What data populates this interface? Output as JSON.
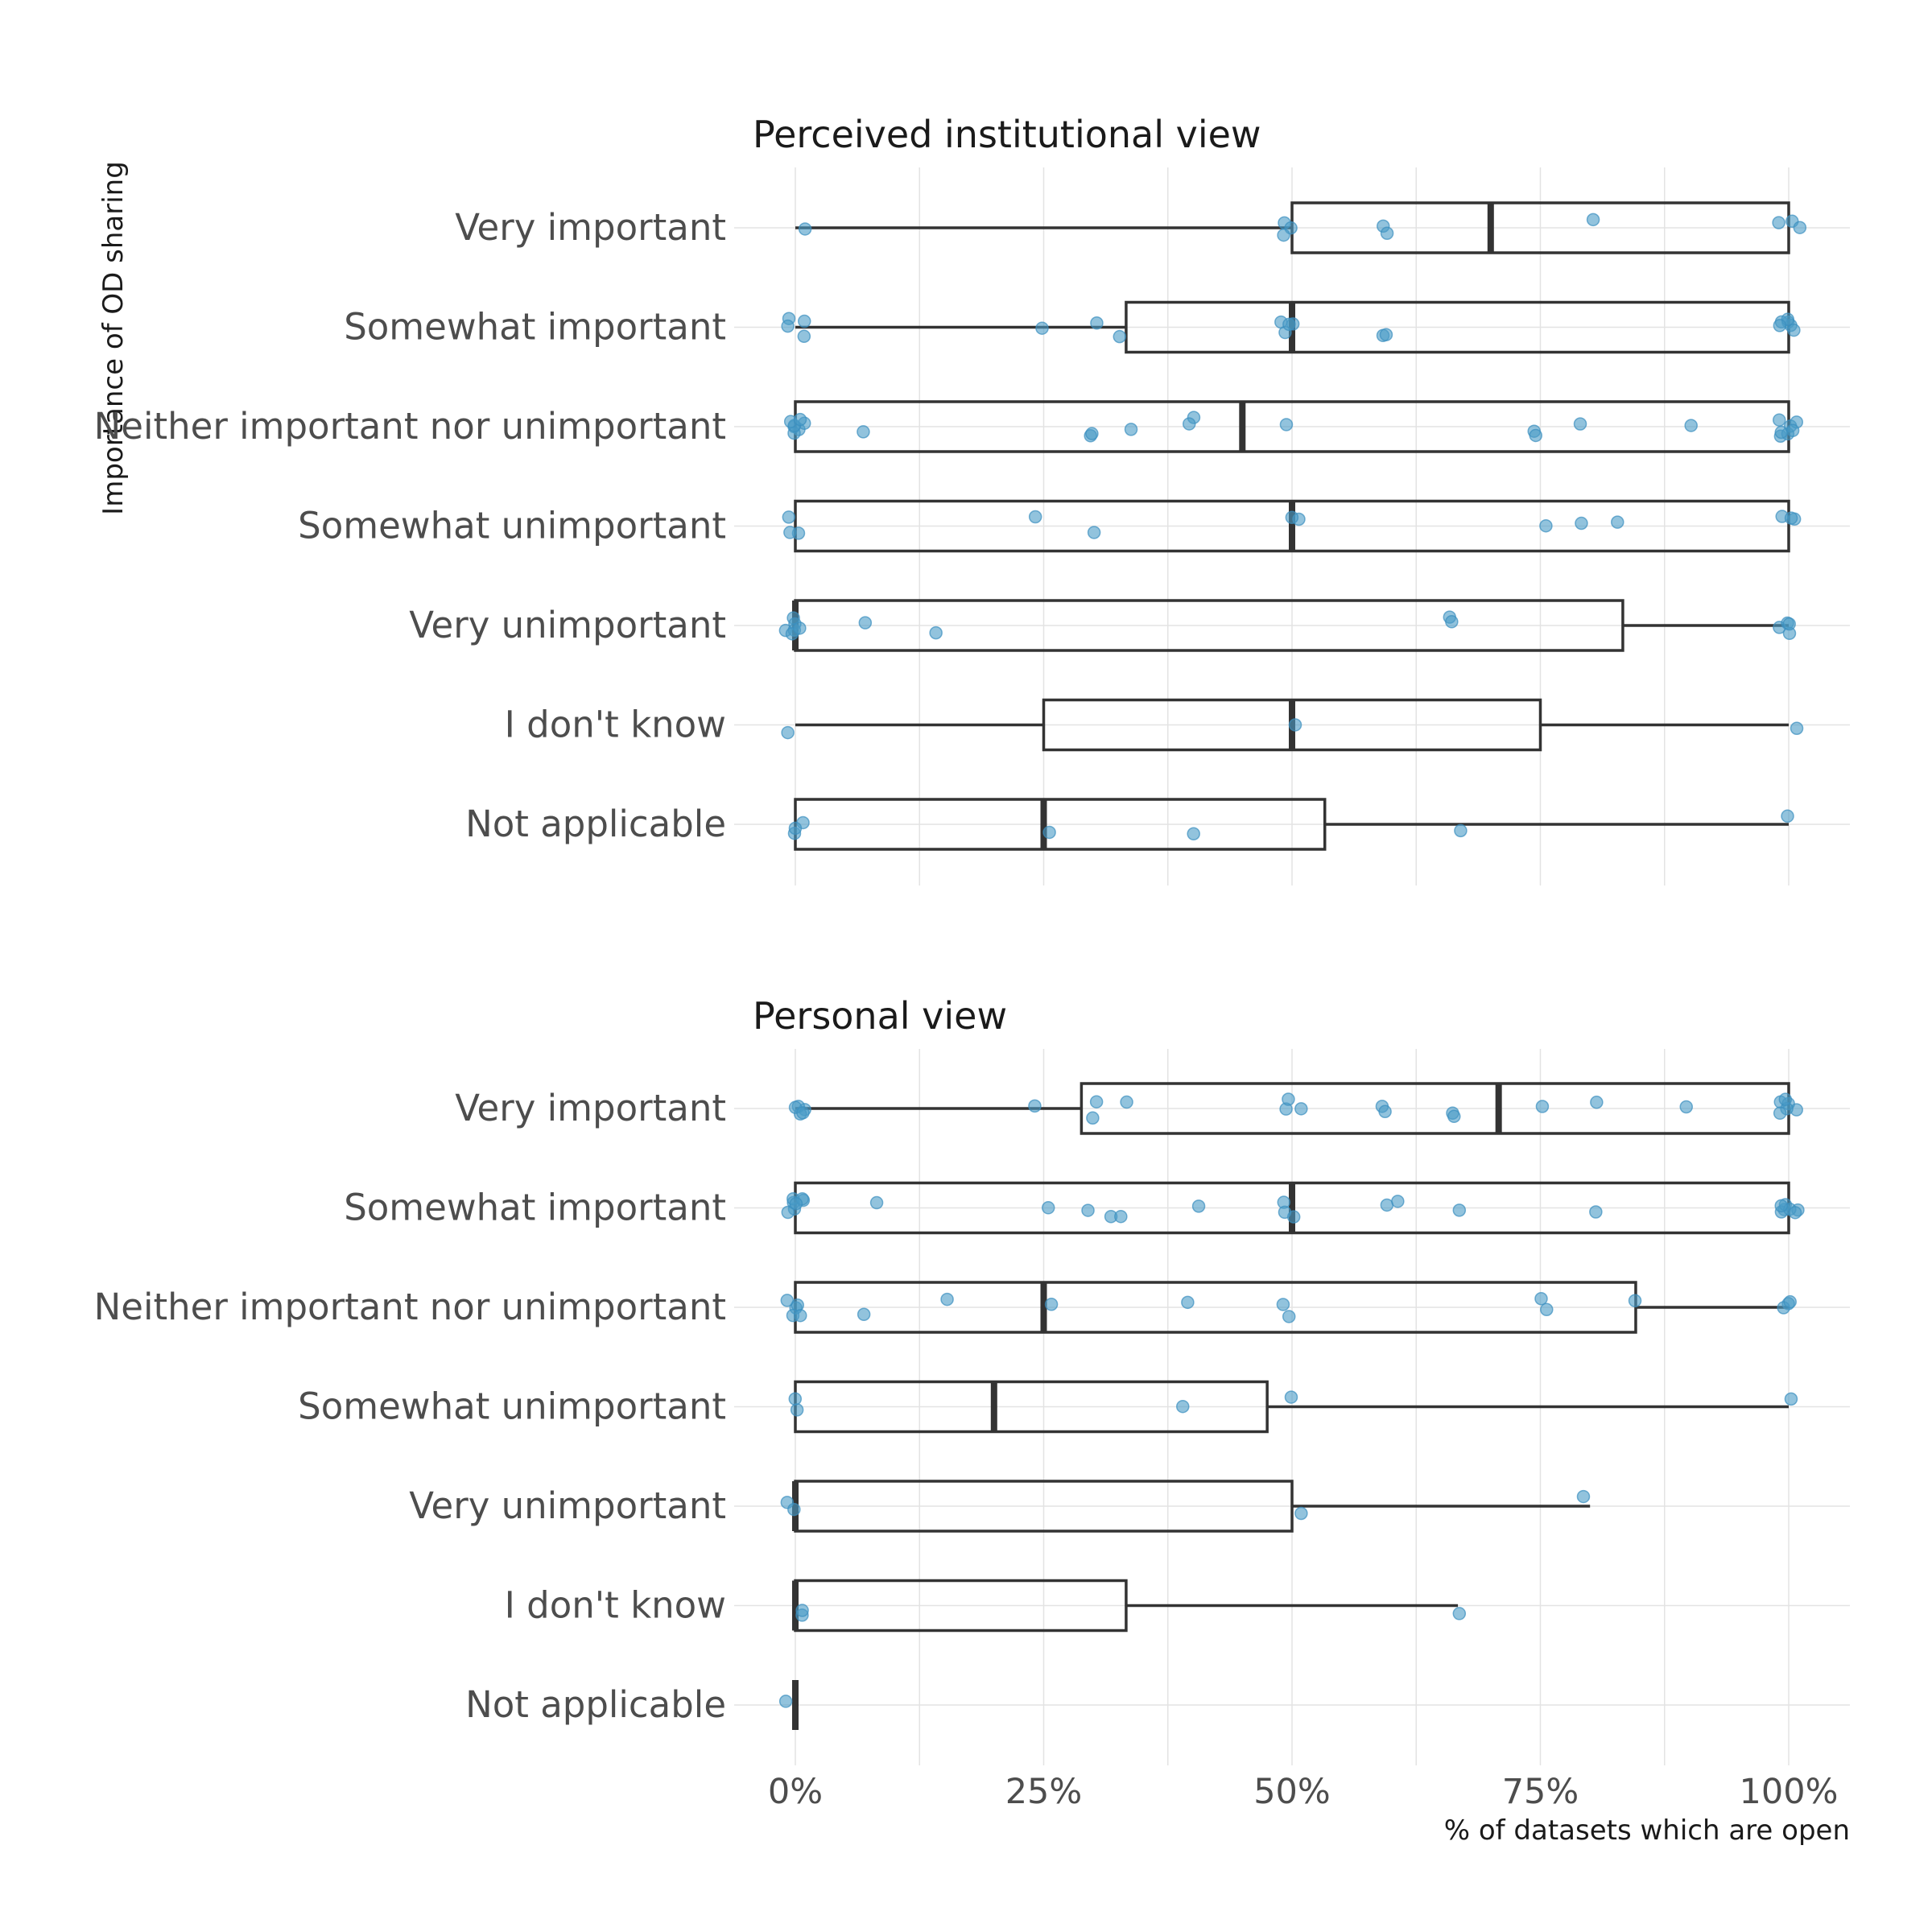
{
  "chart_data": {
    "type": "boxplot",
    "ylabel": "Importance of OD sharing",
    "xlabel": "% of datasets which are open",
    "xlim": [
      0,
      1
    ],
    "xticks": [
      "0%",
      "25%",
      "50%",
      "75%",
      "100%"
    ],
    "categories": [
      "Very important",
      "Somewhat important",
      "Neither important nor unimportant",
      "Somewhat unimportant",
      "Very unimportant",
      "I don't know",
      "Not applicable"
    ],
    "grid": true,
    "point_color": "#4a9bc6",
    "panels": [
      {
        "title": "Perceived institutional view",
        "boxes": [
          {
            "category": "Very important",
            "min": 0.0,
            "q1": 0.5,
            "median": 0.7,
            "q3": 1.0,
            "max": 1.0,
            "points": [
              0.01,
              0.5,
              0.5,
              0.5,
              0.59,
              0.6,
              0.8,
              0.99,
              1.0,
              1.01
            ]
          },
          {
            "category": "Somewhat important",
            "min": 0.0,
            "q1": 0.333,
            "median": 0.5,
            "q3": 1.0,
            "max": 1.0,
            "points": [
              0.0,
              0.0,
              0.0,
              0.0,
              0.25,
              0.3,
              0.333,
              0.49,
              0.5,
              0.5,
              0.5,
              0.6,
              0.6,
              1.0,
              1.0,
              1.0,
              1.0,
              1.0,
              1.0
            ]
          },
          {
            "category": "Neither important nor unimportant",
            "min": 0.0,
            "q1": 0.0,
            "median": 0.45,
            "q3": 1.0,
            "max": 1.0,
            "points": [
              0.0,
              0.0,
              0.0,
              0.0,
              0.0,
              0.0,
              0.0,
              0.073,
              0.29,
              0.29,
              0.333,
              0.4,
              0.4,
              0.5,
              0.74,
              0.75,
              0.8,
              0.9,
              1.0,
              1.0,
              1.0,
              1.0,
              1.0,
              1.0,
              1.0
            ]
          },
          {
            "category": "Somewhat unimportant",
            "min": 0.0,
            "q1": 0.0,
            "median": 0.5,
            "q3": 1.0,
            "max": 1.0,
            "points": [
              0.0,
              0.0,
              0.0,
              0.25,
              0.3,
              0.5,
              0.5,
              0.76,
              0.8,
              0.833,
              1.0,
              1.0,
              1.0
            ]
          },
          {
            "category": "Very unimportant",
            "min": 0.0,
            "q1": 0.0,
            "median": 0.0,
            "q3": 0.833,
            "max": 1.0,
            "points": [
              0.0,
              0.0,
              0.0,
              0.0,
              0.0,
              0.0,
              0.075,
              0.15,
              0.667,
              0.667,
              1.0,
              1.0,
              1.0,
              1.0
            ]
          },
          {
            "category": "I don't know",
            "min": 0.0,
            "q1": 0.25,
            "median": 0.5,
            "q3": 0.75,
            "max": 1.0,
            "points": [
              0.0,
              0.5,
              1.0
            ]
          },
          {
            "category": "Not applicable",
            "min": 0.0,
            "q1": 0.0,
            "median": 0.25,
            "q3": 0.533,
            "max": 1.0,
            "points": [
              0.0,
              0.0,
              0.0,
              0.25,
              0.4,
              0.667,
              1.0
            ]
          }
        ]
      },
      {
        "title": "Personal view",
        "boxes": [
          {
            "category": "Very important",
            "min": 0.0,
            "q1": 0.288,
            "median": 0.708,
            "q3": 1.0,
            "max": 1.0,
            "points": [
              0.0,
              0.0,
              0.0,
              0.0,
              0.0,
              0.25,
              0.3,
              0.3,
              0.33,
              0.5,
              0.5,
              0.5,
              0.6,
              0.6,
              0.667,
              0.667,
              0.75,
              0.8,
              0.9,
              1.0,
              1.0,
              1.0,
              1.0,
              1.0,
              1.0
            ]
          },
          {
            "category": "Somewhat important",
            "min": 0.0,
            "q1": 0.0,
            "median": 0.5,
            "q3": 1.0,
            "max": 1.0,
            "points": [
              0.0,
              0.0,
              0.0,
              0.0,
              0.0,
              0.0,
              0.0,
              0.085,
              0.25,
              0.3,
              0.31,
              0.33,
              0.4,
              0.5,
              0.5,
              0.5,
              0.6,
              0.61,
              0.66,
              0.8,
              1.0,
              1.0,
              1.0,
              1.0,
              1.0,
              1.0,
              1.0
            ]
          },
          {
            "category": "Neither important nor unimportant",
            "min": 0.0,
            "q1": 0.0,
            "median": 0.25,
            "q3": 0.846,
            "max": 1.0,
            "points": [
              0.0,
              0.0,
              0.0,
              0.0,
              0.0,
              0.07,
              0.154,
              0.25,
              0.4,
              0.5,
              0.5,
              0.75,
              0.75,
              0.846,
              1.0,
              1.0,
              1.0
            ]
          },
          {
            "category": "Somewhat unimportant",
            "min": 0.0,
            "q1": 0.0,
            "median": 0.2,
            "q3": 0.475,
            "max": 1.0,
            "points": [
              0.0,
              0.0,
              0.4,
              0.5,
              1.0
            ]
          },
          {
            "category": "Very unimportant",
            "min": 0.0,
            "q1": 0.0,
            "median": 0.0,
            "q3": 0.5,
            "max": 0.8,
            "points": [
              0.0,
              0.0,
              0.5,
              0.8
            ]
          },
          {
            "category": "I don't know",
            "min": 0.0,
            "q1": 0.0,
            "median": 0.0,
            "q3": 0.333,
            "max": 0.667,
            "points": [
              0.0,
              0.0,
              0.667
            ]
          },
          {
            "category": "Not applicable",
            "min": 0.0,
            "q1": 0.0,
            "median": 0.0,
            "q3": 0.0,
            "max": 0.0,
            "points": [
              0.0
            ]
          }
        ]
      }
    ]
  }
}
